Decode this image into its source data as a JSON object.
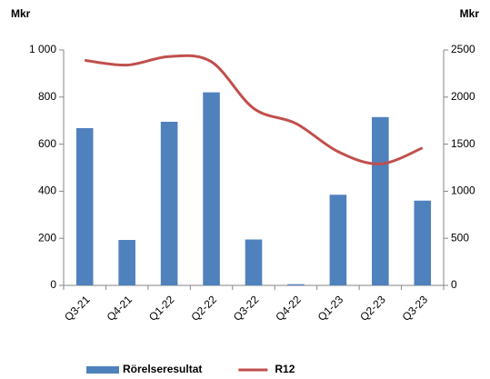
{
  "chart_data": {
    "type": "bar-line",
    "ylabel": "Mkr",
    "y2label": "Mkr",
    "categories": [
      "Q3-21",
      "Q4-21",
      "Q1-22",
      "Q2-22",
      "Q3-22",
      "Q4-22",
      "Q1-23",
      "Q2-23",
      "Q3-23"
    ],
    "series": [
      {
        "name": "Rörelseresultat",
        "color": "#4f81bd",
        "type": "bar",
        "values": [
          668,
          193,
          695,
          820,
          195,
          5,
          385,
          715,
          360
        ]
      },
      {
        "name": "R12",
        "color": "#c0504d",
        "type": "line",
        "axis": "y2",
        "values": [
          2390,
          2340,
          2430,
          2375,
          1880,
          1720,
          1420,
          1290,
          1460
        ]
      }
    ],
    "ylim": [
      0,
      1000
    ],
    "yticks": [
      0,
      200,
      400,
      600,
      800,
      {
        "value": 1000,
        "label": "1 000"
      }
    ],
    "y2lim": [
      0,
      2500
    ],
    "y2ticks": [
      0,
      500,
      1000,
      1500,
      2000,
      2500
    ],
    "legend": "bottom"
  }
}
